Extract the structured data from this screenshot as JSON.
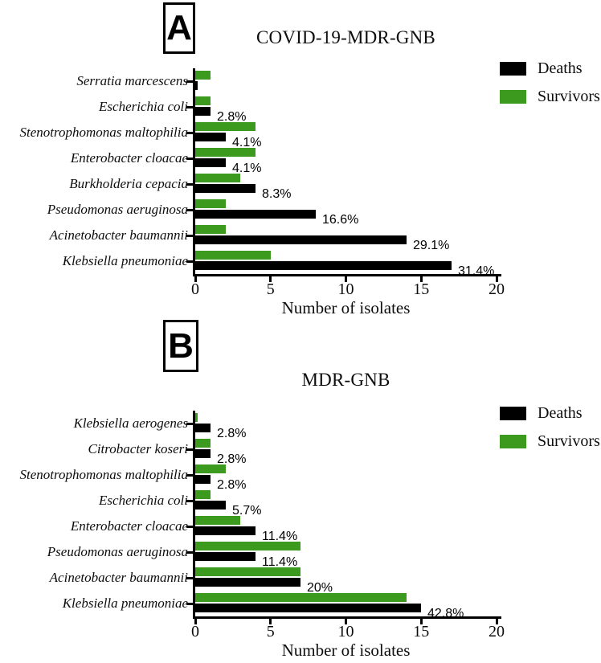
{
  "figure": {
    "background": "#ffffff",
    "series_colors": {
      "Deaths": "#000000",
      "Survivors": "#3c9b1e"
    }
  },
  "chart_data": [
    {
      "type": "bar",
      "orientation": "horizontal",
      "panel_label": "A",
      "title": "COVID-19-MDR-GNB",
      "xlabel": "Number of isolates",
      "xlim": [
        0,
        20
      ],
      "x_ticks": [
        "0",
        "5",
        "10",
        "15",
        "20"
      ],
      "grid": false,
      "legend_position": "top-right",
      "categories": [
        "Serratia marcescens",
        "Escherichia coli",
        "Stenotrophomonas maltophilia",
        "Enterobacter cloacae",
        "Burkholderia cepacia",
        "Pseudomonas aeruginosa",
        "Acinetobacter baumannii",
        "Klebsiella pneumoniae"
      ],
      "series": [
        {
          "name": "Deaths",
          "color": "#000000",
          "values": [
            0,
            1,
            2,
            2,
            4,
            8,
            14,
            17
          ]
        },
        {
          "name": "Survivors",
          "color": "#3c9b1e",
          "values": [
            1,
            1,
            4,
            4,
            3,
            2,
            2,
            5
          ]
        }
      ],
      "percent_labels": [
        "",
        "2.8%",
        "4.1%",
        "4.1%",
        "8.3%",
        "16.6%",
        "29.1%",
        "31.4%"
      ]
    },
    {
      "type": "bar",
      "orientation": "horizontal",
      "panel_label": "B",
      "title": "MDR-GNB",
      "xlabel": "Number of isolates",
      "xlim": [
        0,
        20
      ],
      "x_ticks": [
        "0",
        "5",
        "10",
        "15",
        "20"
      ],
      "grid": false,
      "legend_position": "top-right",
      "categories": [
        "Klebsiella aerogenes",
        "Citrobacter koseri",
        "Stenotrophomonas maltophilia",
        "Escherichia coli",
        "Enterobacter cloacae",
        "Pseudomonas aeruginosa",
        "Acinetobacter baumannii",
        "Klebsiella pneumoniae"
      ],
      "series": [
        {
          "name": "Deaths",
          "color": "#000000",
          "values": [
            1,
            1,
            1,
            2,
            4,
            4,
            7,
            15
          ]
        },
        {
          "name": "Survivors",
          "color": "#3c9b1e",
          "values": [
            0,
            1,
            2,
            1,
            3,
            7,
            7,
            14
          ]
        }
      ],
      "percent_labels": [
        "2.8%",
        "2.8%",
        "2.8%",
        "5.7%",
        "11.4%",
        "11.4%",
        "20%",
        "42.8%"
      ]
    }
  ]
}
